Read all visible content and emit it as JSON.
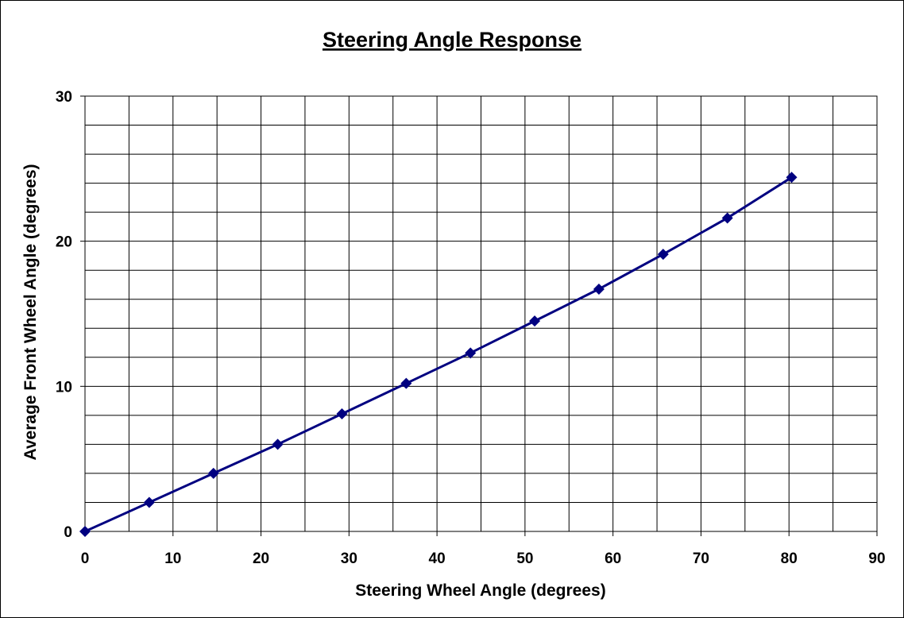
{
  "chart_data": {
    "type": "line",
    "title": "Steering Angle Response",
    "xlabel": "Steering Wheel Angle (degrees)",
    "ylabel": "Average Front Wheel Angle (degrees)",
    "xlim": [
      0,
      90
    ],
    "ylim": [
      0,
      30
    ],
    "x_ticks": [
      "0",
      "10",
      "20",
      "30",
      "40",
      "50",
      "60",
      "70",
      "80",
      "90"
    ],
    "y_ticks": [
      "0",
      "10",
      "20",
      "30"
    ],
    "x_minor_step": 5,
    "y_minor_step": 2,
    "grid": true,
    "legend": "none",
    "marker": "diamond",
    "colors": {
      "series": "#000080",
      "grid": "#000000"
    },
    "series": [
      {
        "x": [
          0,
          7.3,
          14.6,
          21.9,
          29.2,
          36.5,
          43.8,
          51.1,
          58.4,
          65.7,
          73.0,
          80.3
        ],
        "y": [
          0,
          2.0,
          4.0,
          6.0,
          8.1,
          10.2,
          12.3,
          14.5,
          16.7,
          19.1,
          21.6,
          24.4
        ]
      }
    ]
  }
}
